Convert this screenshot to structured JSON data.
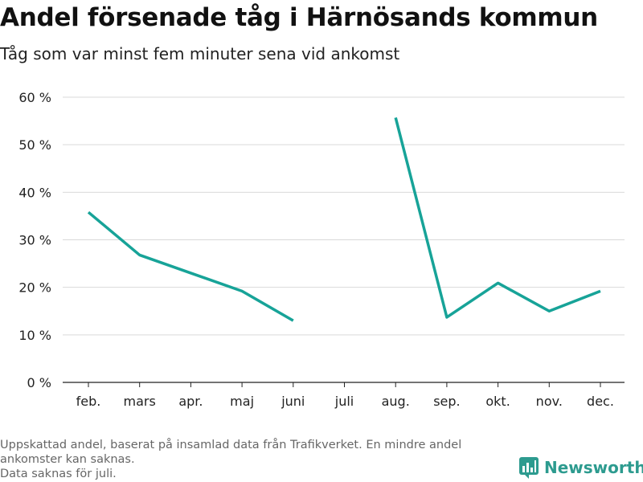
{
  "header": {
    "title": "Andel försenade tåg i Härnösands kommun",
    "subtitle": "Tåg som var minst fem minuter sena vid ankomst"
  },
  "footer": {
    "line1": "Uppskattad andel, baserat på insamlad data från Trafikverket. En mindre andel ankomster kan saknas.",
    "line2": "Data saknas för juli.",
    "brand": "Newsworthy"
  },
  "colors": {
    "line": "#17a398",
    "grid": "#d9d9d9",
    "brand": "#2d9b8f"
  },
  "chart_data": {
    "type": "line",
    "title": "Andel försenade tåg i Härnösands kommun",
    "subtitle": "Tåg som var minst fem minuter sena vid ankomst",
    "categories": [
      "feb.",
      "mars",
      "apr.",
      "maj",
      "juni",
      "juli",
      "aug.",
      "sep.",
      "okt.",
      "nov.",
      "dec."
    ],
    "values": [
      35.8,
      26.8,
      23.0,
      19.2,
      13.0,
      null,
      55.7,
      13.7,
      20.9,
      15.0,
      19.2
    ],
    "ylim": [
      0,
      60
    ],
    "yticks": [
      0,
      10,
      20,
      30,
      40,
      50,
      60
    ],
    "ytick_labels": [
      "0 %",
      "10 %",
      "20 %",
      "30 %",
      "40 %",
      "50 %",
      "60 %"
    ],
    "grid": true,
    "legend": "none"
  }
}
